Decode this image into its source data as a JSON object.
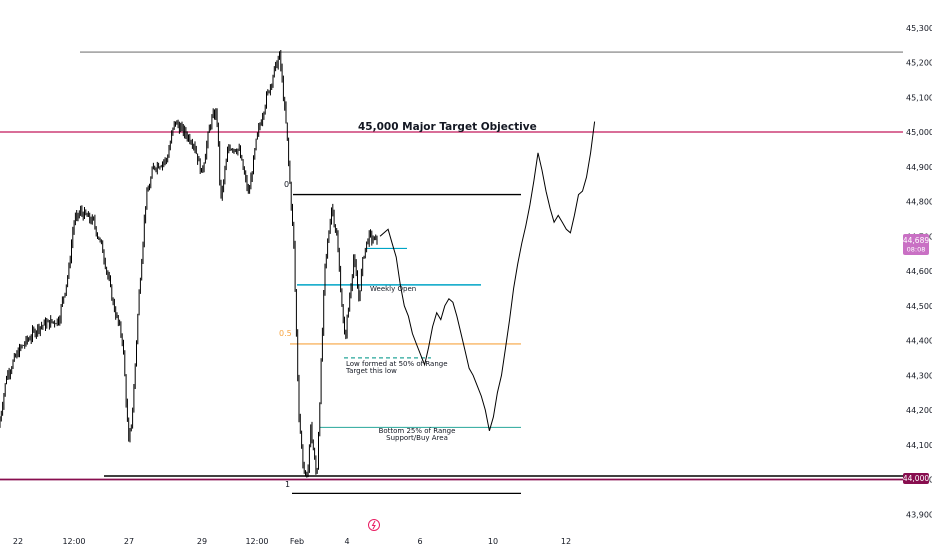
{
  "chart_data": {
    "type": "candlestick",
    "y_axis": {
      "ticks": [
        "45,300",
        "45,200",
        "45,100",
        "45,000",
        "44,900",
        "44,800",
        "44,700",
        "44,600",
        "44,500",
        "44,400",
        "44,300",
        "44,200",
        "44,100",
        "44,000",
        "43,900"
      ],
      "ylim": [
        43860,
        45340
      ]
    },
    "x_axis": {
      "ticks": [
        "22",
        "12:00",
        "27",
        "29",
        "12:00",
        "Feb",
        "4",
        "6",
        "10",
        "12"
      ]
    },
    "price_badge": {
      "value": "44,689",
      "countdown": "08:08",
      "color": "#c970c4"
    },
    "level_badge": {
      "value": "44,000",
      "color": "#880e4f"
    },
    "levels": [
      {
        "price": 45000,
        "color": "#c2185b",
        "label": "45,000 Major Target Objective"
      },
      {
        "price": 44000,
        "color": "#880e4f",
        "label": ""
      },
      {
        "price": 45230,
        "color": "#555555",
        "label": ""
      },
      {
        "price": 44820,
        "color": "#000000",
        "label": ""
      },
      {
        "price": 43960,
        "color": "#000000",
        "label": ""
      },
      {
        "price": 44010,
        "color": "#000000",
        "label": ""
      },
      {
        "price": 44390,
        "color": "#f7a440",
        "label": ""
      },
      {
        "price": 44560,
        "color": "#00a5c6",
        "label": "Weekly Open"
      },
      {
        "price": 44665,
        "color": "#00a5c6",
        "label": ""
      },
      {
        "price": 44150,
        "color": "#26a69a",
        "label": ""
      },
      {
        "price": 44350,
        "color": "#26a69a",
        "label": ""
      }
    ],
    "fib_labels": [
      {
        "text": "0",
        "price": 44820
      },
      {
        "text": "0.5",
        "price": 44390
      },
      {
        "text": "1",
        "price": 43960
      }
    ],
    "annotations": [
      {
        "lines": [
          "Low formed at 50% of Range",
          "Target this low"
        ]
      },
      {
        "lines": [
          "Bottom 25% of Range",
          "Support/Buy Area"
        ]
      }
    ],
    "projection": [
      [
        0,
        44700
      ],
      [
        2,
        44720
      ],
      [
        3,
        44680
      ],
      [
        4,
        44640
      ],
      [
        5,
        44560
      ],
      [
        6,
        44500
      ],
      [
        7,
        44470
      ],
      [
        8,
        44420
      ],
      [
        9,
        44390
      ],
      [
        10,
        44360
      ],
      [
        11,
        44330
      ],
      [
        12,
        44380
      ],
      [
        13,
        44440
      ],
      [
        14,
        44480
      ],
      [
        15,
        44460
      ],
      [
        16,
        44500
      ],
      [
        17,
        44520
      ],
      [
        18,
        44510
      ],
      [
        19,
        44470
      ],
      [
        20,
        44420
      ],
      [
        21,
        44370
      ],
      [
        22,
        44320
      ],
      [
        23,
        44300
      ],
      [
        24,
        44270
      ],
      [
        25,
        44240
      ],
      [
        26,
        44200
      ],
      [
        27,
        44140
      ],
      [
        28,
        44180
      ],
      [
        29,
        44250
      ],
      [
        30,
        44300
      ],
      [
        31,
        44380
      ],
      [
        32,
        44460
      ],
      [
        33,
        44550
      ],
      [
        34,
        44620
      ],
      [
        35,
        44680
      ],
      [
        36,
        44730
      ],
      [
        37,
        44790
      ],
      [
        38,
        44860
      ],
      [
        39,
        44940
      ],
      [
        40,
        44890
      ],
      [
        41,
        44830
      ],
      [
        42,
        44780
      ],
      [
        43,
        44740
      ],
      [
        44,
        44760
      ],
      [
        45,
        44740
      ],
      [
        46,
        44720
      ],
      [
        47,
        44710
      ],
      [
        48,
        44760
      ],
      [
        49,
        44820
      ],
      [
        50,
        44830
      ],
      [
        51,
        44870
      ],
      [
        52,
        44940
      ],
      [
        53,
        45030
      ]
    ],
    "colors": {
      "candle": "#000000",
      "projection": "#000000"
    }
  }
}
